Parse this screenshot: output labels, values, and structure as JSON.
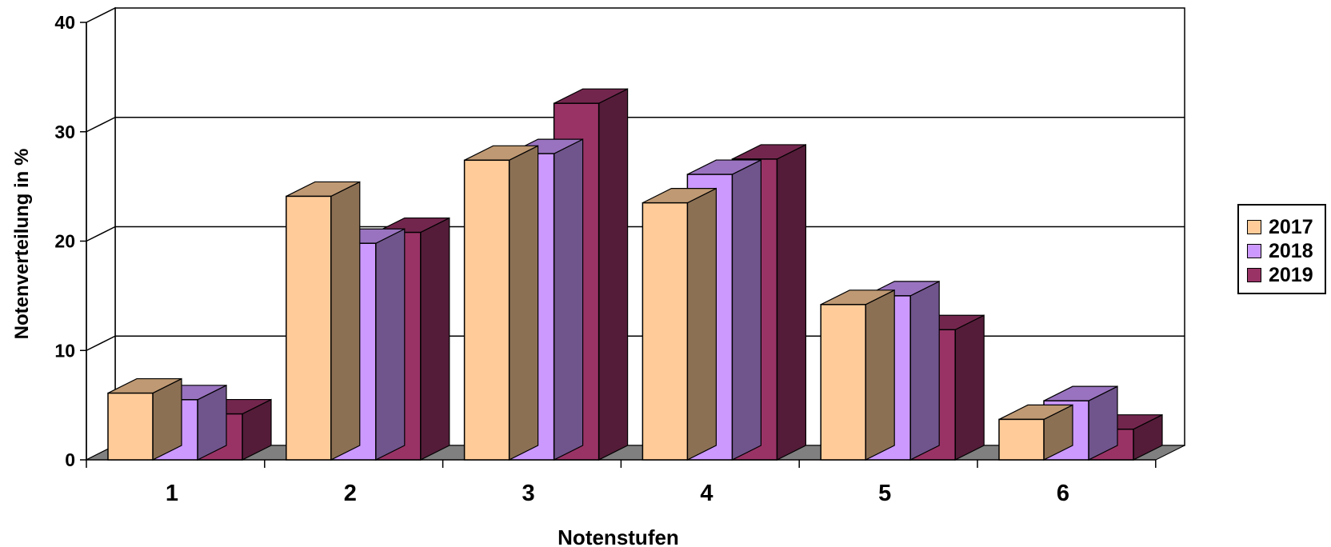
{
  "chart_data": {
    "type": "bar",
    "style": "3d-clustered-column",
    "categories": [
      "1",
      "2",
      "3",
      "4",
      "5",
      "6"
    ],
    "series": [
      {
        "name": "2017",
        "values": [
          6.1,
          24.1,
          27.4,
          23.5,
          14.2,
          3.7
        ],
        "color": "#FFCC99"
      },
      {
        "name": "2018",
        "values": [
          5.5,
          19.8,
          28.0,
          26.1,
          15.0,
          5.4
        ],
        "color": "#CC99FF"
      },
      {
        "name": "2019",
        "values": [
          4.2,
          20.8,
          32.6,
          27.5,
          11.9,
          2.8
        ],
        "color": "#993366"
      }
    ],
    "title": "",
    "xlabel": "Notenstufen",
    "ylabel": "Notenverteilung in %",
    "ylim": [
      0,
      40
    ],
    "yticks": [
      "0",
      "10",
      "20",
      "30",
      "40"
    ],
    "grid": true,
    "legend_position": "right"
  }
}
